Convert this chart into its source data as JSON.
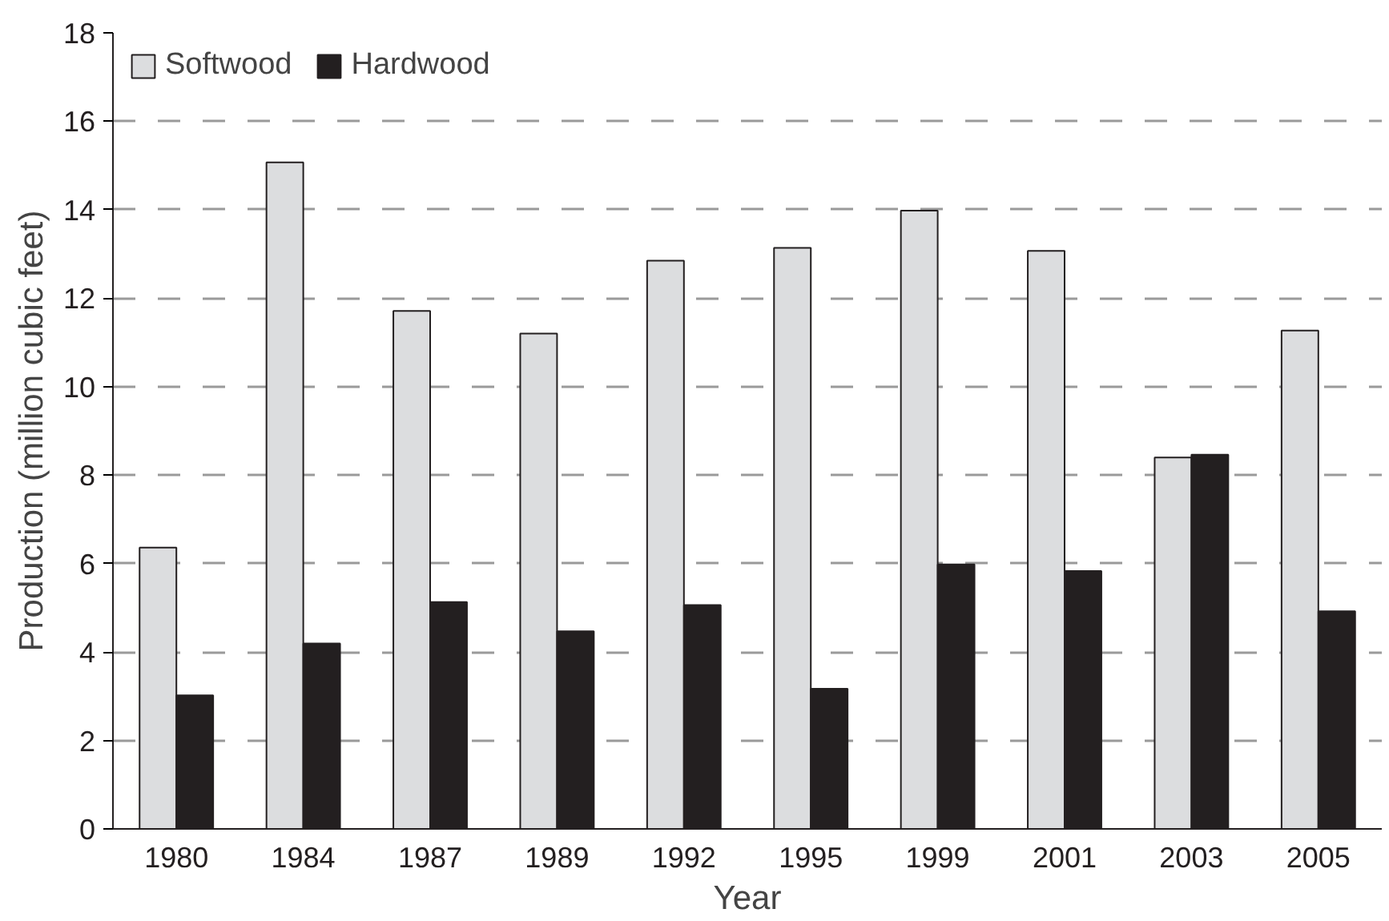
{
  "chart_data": {
    "type": "bar",
    "xlabel": "Year",
    "ylabel": "Production (million cubic feet)",
    "categories": [
      "1980",
      "1984",
      "1987",
      "1989",
      "1992",
      "1995",
      "1999",
      "2001",
      "2003",
      "2005"
    ],
    "series": [
      {
        "name": "Softwood",
        "color": "#dcdddf",
        "values": [
          6.36,
          15.07,
          11.71,
          11.2,
          12.85,
          13.14,
          13.98,
          13.07,
          8.4,
          11.27
        ]
      },
      {
        "name": "Hardwood",
        "color": "#231f20",
        "values": [
          3.02,
          4.19,
          5.13,
          4.47,
          5.06,
          3.17,
          5.98,
          5.83,
          8.46,
          4.92
        ]
      }
    ],
    "ylim": [
      0,
      18
    ],
    "yticks": [
      0,
      2,
      4,
      6,
      8,
      10,
      12,
      14,
      16,
      18
    ],
    "grid": "y",
    "legend": "top left"
  }
}
